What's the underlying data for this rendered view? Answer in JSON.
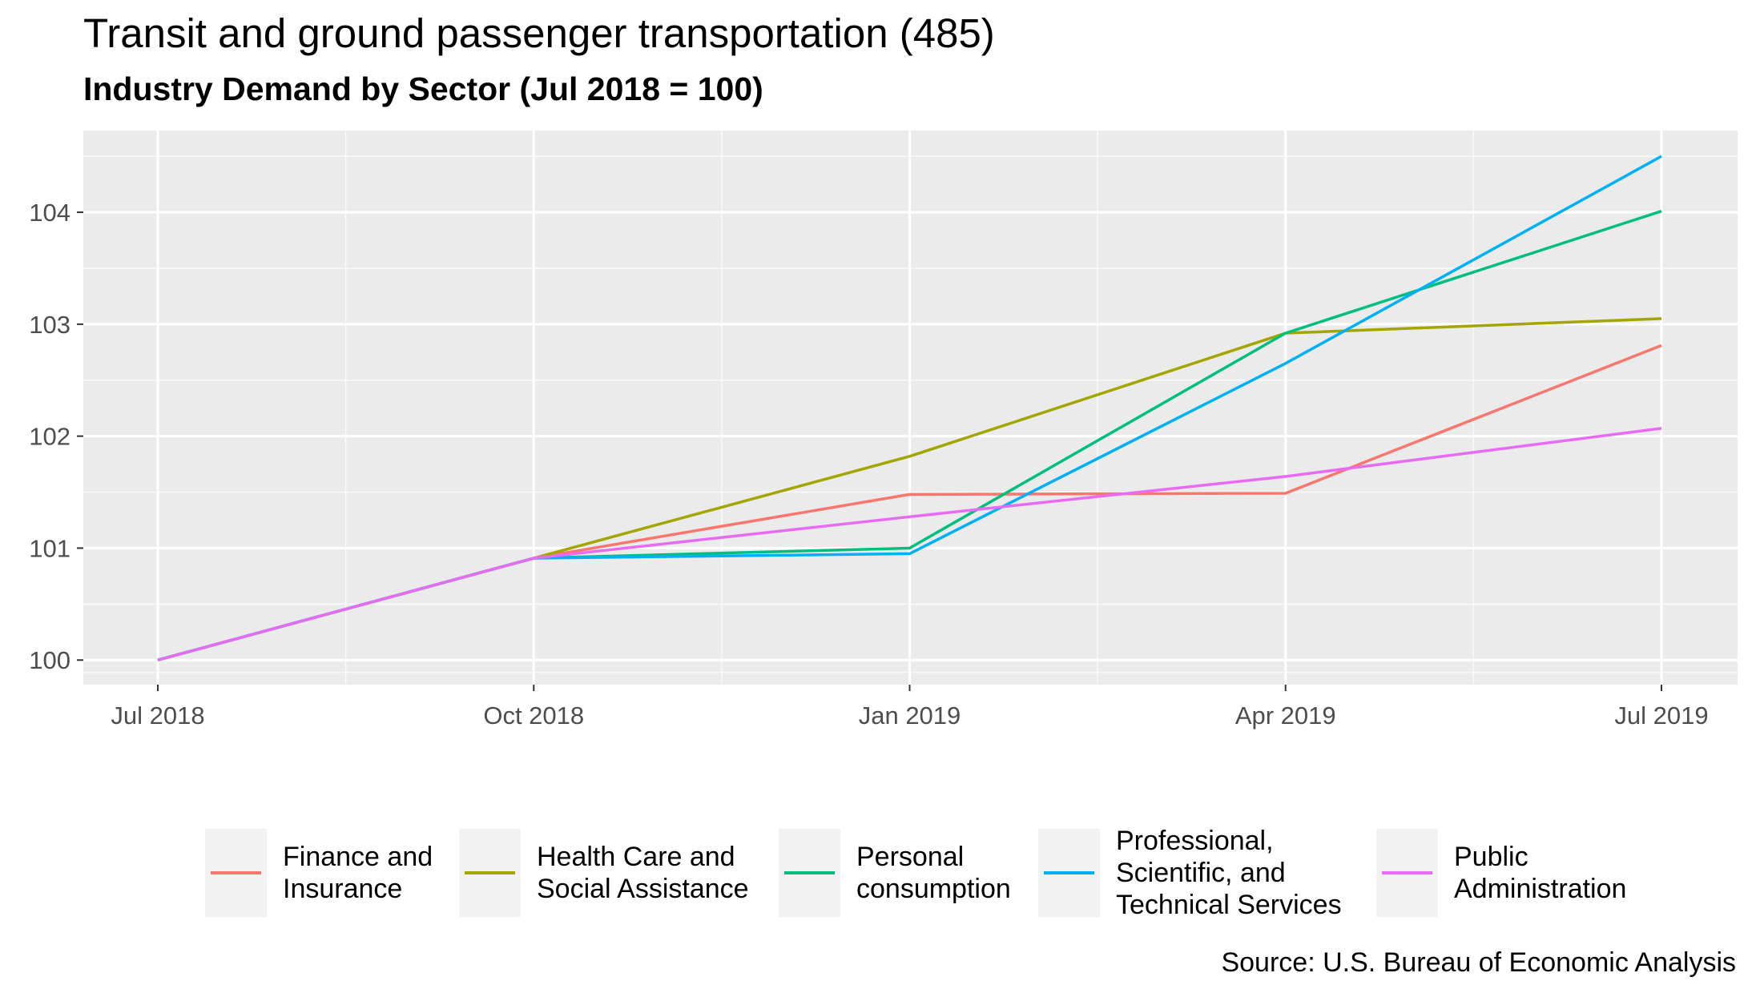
{
  "title": "Transit and ground passenger transportation (485)",
  "subtitle": "Industry Demand by Sector (Jul 2018 = 100)",
  "caption": "Source: U.S. Bureau of Economic Analysis",
  "chart_data": {
    "type": "line",
    "title": "Transit and ground passenger transportation (485)",
    "subtitle": "Industry Demand by Sector (Jul 2018 = 100)",
    "xlabel": "",
    "ylabel": "",
    "x": [
      "Jul 2018",
      "Oct 2018",
      "Jan 2019",
      "Apr 2019",
      "Jul 2019"
    ],
    "x_ticks": [
      "Jul 2018",
      "Oct 2018",
      "Jan 2019",
      "Apr 2019",
      "Jul 2019"
    ],
    "y_ticks": [
      100,
      101,
      102,
      103,
      104
    ],
    "ylim": [
      99.78,
      104.73
    ],
    "grid": true,
    "legend_position": "bottom",
    "background": "#ebebeb",
    "series": [
      {
        "name": "Finance and\nInsurance",
        "color": "#f8766d",
        "values": [
          100,
          100.91,
          101.48,
          101.49,
          102.81
        ]
      },
      {
        "name": "Health Care and\nSocial Assistance",
        "color": "#a3a500",
        "values": [
          100,
          100.91,
          101.82,
          102.92,
          103.05
        ]
      },
      {
        "name": "Personal\nconsumption",
        "color": "#00bf7d",
        "values": [
          100,
          100.91,
          101.0,
          102.92,
          104.01
        ]
      },
      {
        "name": "Professional,\nScientific, and\nTechnical Services",
        "color": "#00b0f6",
        "values": [
          100,
          100.91,
          100.95,
          102.65,
          104.5
        ]
      },
      {
        "name": "Public\nAdministration",
        "color": "#e76bf3",
        "values": [
          100,
          100.91,
          101.28,
          101.64,
          102.07
        ]
      }
    ]
  }
}
